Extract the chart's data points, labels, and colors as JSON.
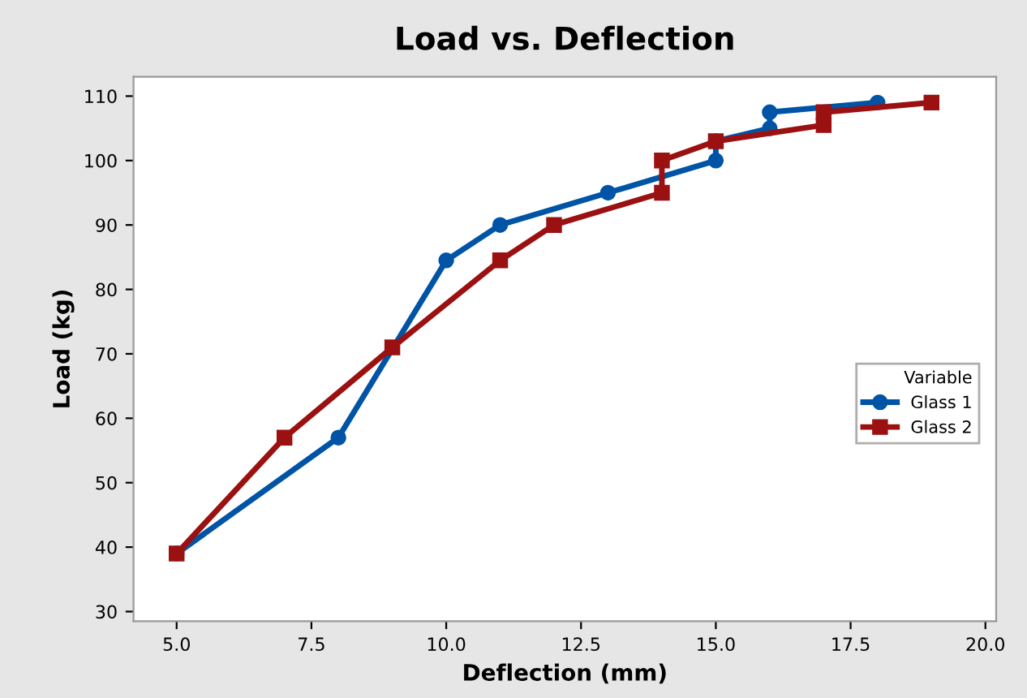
{
  "chart_data": {
    "type": "line",
    "title": "Load vs. Deflection",
    "xlabel": "Deflection (mm)",
    "ylabel": "Load (kg)",
    "legend_title": "Variable",
    "series": [
      {
        "name": "Glass 1",
        "color": "#0054a6",
        "marker": "circle",
        "x": [
          5,
          8,
          10,
          11,
          13,
          15,
          15,
          16,
          16,
          18
        ],
        "values": [
          39,
          57,
          84.5,
          90,
          95,
          100,
          103,
          105,
          107.5,
          109
        ]
      },
      {
        "name": "Glass 2",
        "color": "#9b1111",
        "marker": "square",
        "x": [
          5,
          7,
          9,
          11,
          12,
          14,
          14,
          15,
          17,
          17,
          19
        ],
        "values": [
          39,
          57,
          71,
          84.5,
          90,
          95,
          100,
          103,
          105.5,
          107.5,
          109
        ]
      }
    ],
    "xlim": [
      4.2,
      20.2
    ],
    "ylim": [
      28.5,
      113
    ],
    "xticks": [
      {
        "value": 5,
        "label": "5.0"
      },
      {
        "value": 7.5,
        "label": "7.5"
      },
      {
        "value": 10,
        "label": "10.0"
      },
      {
        "value": 12.5,
        "label": "12.5"
      },
      {
        "value": 15,
        "label": "15.0"
      },
      {
        "value": 17.5,
        "label": "17.5"
      },
      {
        "value": 20,
        "label": "20.0"
      }
    ],
    "yticks": [
      30,
      40,
      50,
      60,
      70,
      80,
      90,
      100,
      110
    ],
    "grid": false,
    "legend": "right",
    "line_style": "solid"
  }
}
